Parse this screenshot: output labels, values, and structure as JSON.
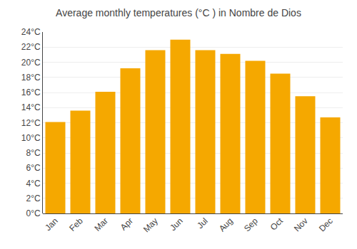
{
  "chart_data": {
    "type": "bar",
    "title": "Average monthly temperatures (°C ) in Nombre de Dios",
    "categories": [
      "Jan",
      "Feb",
      "Mar",
      "Apr",
      "May",
      "Jun",
      "Jul",
      "Aug",
      "Sep",
      "Oct",
      "Nov",
      "Dec"
    ],
    "values": [
      12.1,
      13.6,
      16.1,
      19.2,
      21.6,
      23.0,
      21.6,
      21.1,
      20.2,
      18.5,
      15.5,
      12.7
    ],
    "color": "#F5A800",
    "ylim": [
      0,
      24
    ],
    "yticks": [
      {
        "value": 0,
        "label": "0°C"
      },
      {
        "value": 2,
        "label": "2°C"
      },
      {
        "value": 4,
        "label": "4°C"
      },
      {
        "value": 6,
        "label": "6°C"
      },
      {
        "value": 8,
        "label": "8°C"
      },
      {
        "value": 10,
        "label": "10°C"
      },
      {
        "value": 12,
        "label": "12°C"
      },
      {
        "value": 14,
        "label": "14°C"
      },
      {
        "value": 16,
        "label": "16°C"
      },
      {
        "value": 18,
        "label": "18°C"
      },
      {
        "value": 20,
        "label": "20°C"
      },
      {
        "value": 22,
        "label": "22°C"
      },
      {
        "value": 24,
        "label": "24°C"
      }
    ],
    "grid": true
  }
}
